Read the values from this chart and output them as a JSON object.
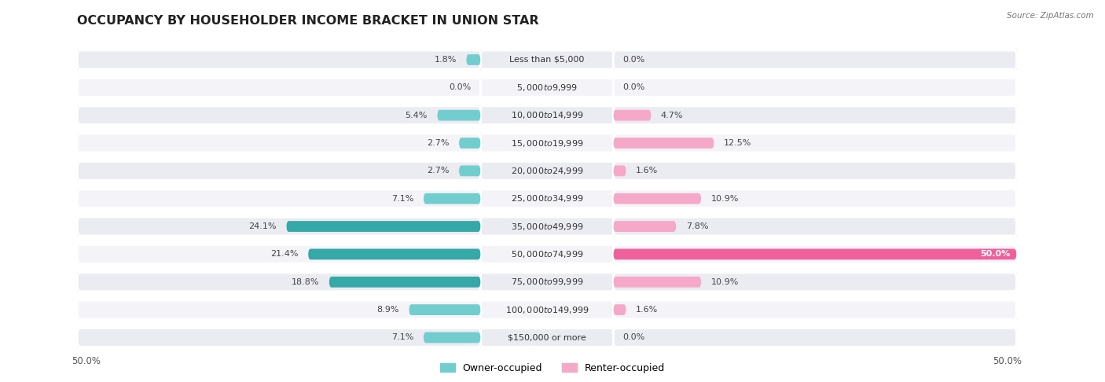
{
  "title": "OCCUPANCY BY HOUSEHOLDER INCOME BRACKET IN UNION STAR",
  "source": "Source: ZipAtlas.com",
  "categories": [
    "Less than $5,000",
    "$5,000 to $9,999",
    "$10,000 to $14,999",
    "$15,000 to $19,999",
    "$20,000 to $24,999",
    "$25,000 to $34,999",
    "$35,000 to $49,999",
    "$50,000 to $74,999",
    "$75,000 to $99,999",
    "$100,000 to $149,999",
    "$150,000 or more"
  ],
  "owner_values": [
    1.8,
    0.0,
    5.4,
    2.7,
    2.7,
    7.1,
    24.1,
    21.4,
    18.8,
    8.9,
    7.1
  ],
  "renter_values": [
    0.0,
    0.0,
    4.7,
    12.5,
    1.6,
    10.9,
    7.8,
    50.0,
    10.9,
    1.6,
    0.0
  ],
  "owner_color_light": "#72cece",
  "owner_color_dark": "#35a8a8",
  "renter_color_light": "#f5a8c8",
  "renter_color_dark": "#f0609a",
  "row_color_odd": "#ebebf2",
  "row_color_even": "#f4f4f8",
  "max_value": 50.0,
  "axis_label_left": "50.0%",
  "axis_label_right": "50.0%",
  "legend_owner": "Owner-occupied",
  "legend_renter": "Renter-occupied",
  "title_fontsize": 11.5,
  "label_fontsize": 8,
  "category_fontsize": 8,
  "source_fontsize": 7.5
}
